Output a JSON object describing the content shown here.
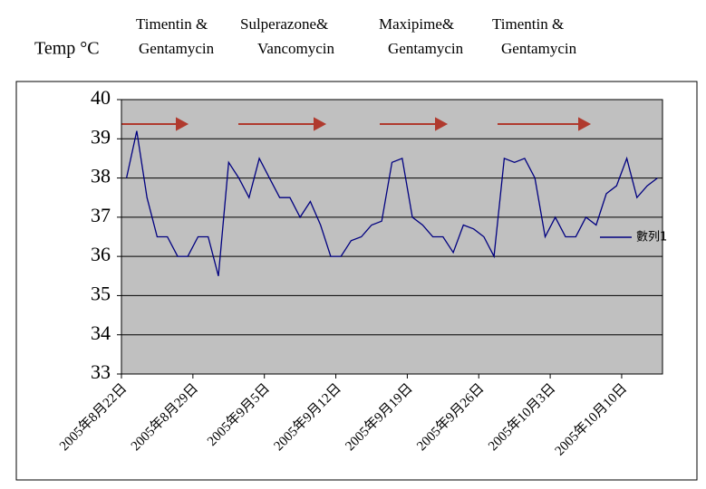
{
  "chart_data": {
    "type": "line",
    "y_label": "Temp °C",
    "annotations": [
      [
        "Timentin &",
        "Gentamycin"
      ],
      [
        "Sulperazone&",
        "Vancomycin"
      ],
      [
        "Maxipime&",
        "Gentamycin"
      ],
      [
        "Timentin &",
        "Gentamycin"
      ]
    ],
    "categories": [
      "2005年8月22日",
      null,
      null,
      null,
      null,
      null,
      null,
      "2005年8月29日",
      null,
      null,
      null,
      null,
      null,
      null,
      "2005年9月5日",
      null,
      null,
      null,
      null,
      null,
      null,
      "2005年9月12日",
      null,
      null,
      null,
      null,
      null,
      null,
      "2005年9月19日",
      null,
      null,
      null,
      null,
      null,
      null,
      "2005年9月26日",
      null,
      null,
      null,
      null,
      null,
      null,
      "2005年10月3日",
      null,
      null,
      null,
      null,
      null,
      null,
      "2005年10月10日",
      null,
      null,
      null
    ],
    "series": [
      {
        "name": "數列1",
        "color": "#000080",
        "values": [
          38.0,
          39.2,
          37.5,
          36.5,
          36.5,
          36.0,
          36.0,
          36.5,
          36.5,
          35.5,
          38.4,
          38.0,
          37.5,
          38.5,
          38.0,
          37.5,
          37.5,
          37.0,
          37.4,
          36.8,
          36.0,
          36.0,
          36.4,
          36.5,
          36.8,
          36.9,
          38.4,
          38.5,
          37.0,
          36.8,
          36.5,
          36.5,
          36.1,
          36.8,
          36.7,
          36.5,
          36.0,
          38.5,
          38.4,
          38.5,
          38.0,
          36.5,
          37.0,
          36.5,
          36.5,
          37.0,
          36.8,
          37.6,
          37.8,
          38.5,
          37.5,
          37.8,
          38.0
        ]
      }
    ],
    "ylim": [
      33,
      40
    ],
    "yticks": [
      33,
      34,
      35,
      36,
      37,
      38,
      39,
      40
    ],
    "grid": true,
    "legend": "right"
  }
}
